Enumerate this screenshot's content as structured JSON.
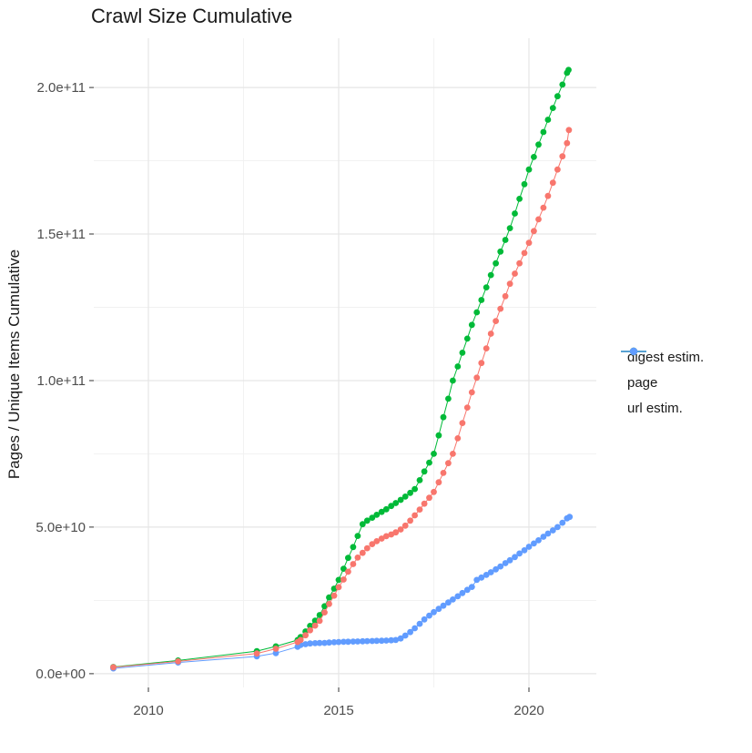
{
  "title": "Crawl Size Cumulative",
  "chart_data": {
    "type": "line",
    "title": "Crawl Size Cumulative",
    "xlabel": "",
    "ylabel": "Pages / Unique Items Cumulative",
    "value_unit": "1e9 (points stored as [year, billions])",
    "xlim": [
      2008.565,
      2021.77
    ],
    "ylim": [
      -4.7,
      216.8
    ],
    "grid": true,
    "legend_position": "right",
    "x_ticks": {
      "values": [
        2010,
        2015,
        2020
      ],
      "labels": [
        "2010",
        "2015",
        "2020"
      ],
      "minor": [
        2012.5,
        2017.5
      ]
    },
    "y_ticks": {
      "values": [
        0,
        50,
        100,
        150,
        200
      ],
      "labels": [
        "0.0e+00",
        "5.0e+10",
        "1.0e+11",
        "1.5e+11",
        "2.0e+11"
      ],
      "minor": [
        25,
        75,
        125,
        175
      ]
    },
    "series": [
      {
        "name": "digest estim.",
        "color": "#F8766D",
        "points": [
          [
            2009.08,
            2.2
          ],
          [
            2010.78,
            4.2
          ],
          [
            2012.85,
            6.9
          ],
          [
            2013.35,
            8.5
          ],
          [
            2013.92,
            10.8
          ],
          [
            2014.0,
            11.5
          ],
          [
            2014.13,
            13.1
          ],
          [
            2014.25,
            14.8
          ],
          [
            2014.38,
            16.4
          ],
          [
            2014.5,
            18
          ],
          [
            2014.63,
            20.9
          ],
          [
            2014.75,
            23.8
          ],
          [
            2014.88,
            26.6
          ],
          [
            2015.0,
            29.5
          ],
          [
            2015.13,
            32.1
          ],
          [
            2015.25,
            34.8
          ],
          [
            2015.38,
            37.4
          ],
          [
            2015.5,
            39.6
          ],
          [
            2015.63,
            41.2
          ],
          [
            2015.75,
            42.8
          ],
          [
            2015.88,
            44.2
          ],
          [
            2016.0,
            45.2
          ],
          [
            2016.13,
            46.1
          ],
          [
            2016.25,
            46.9
          ],
          [
            2016.38,
            47.5
          ],
          [
            2016.5,
            48.2
          ],
          [
            2016.63,
            49.2
          ],
          [
            2016.75,
            50.5
          ],
          [
            2016.88,
            52.2
          ],
          [
            2017.0,
            54
          ],
          [
            2017.13,
            56
          ],
          [
            2017.25,
            58
          ],
          [
            2017.38,
            60
          ],
          [
            2017.5,
            62
          ],
          [
            2017.63,
            65.3
          ],
          [
            2017.75,
            68.5
          ],
          [
            2017.88,
            71.8
          ],
          [
            2018.0,
            75
          ],
          [
            2018.13,
            80.3
          ],
          [
            2018.25,
            85.5
          ],
          [
            2018.38,
            90.8
          ],
          [
            2018.5,
            96
          ],
          [
            2018.63,
            101
          ],
          [
            2018.75,
            106
          ],
          [
            2018.88,
            111
          ],
          [
            2019.0,
            116
          ],
          [
            2019.13,
            120.3
          ],
          [
            2019.25,
            124.5
          ],
          [
            2019.38,
            128.8
          ],
          [
            2019.5,
            133
          ],
          [
            2019.63,
            136.5
          ],
          [
            2019.75,
            140
          ],
          [
            2019.88,
            143.5
          ],
          [
            2020.0,
            147
          ],
          [
            2020.13,
            151
          ],
          [
            2020.25,
            155
          ],
          [
            2020.38,
            159
          ],
          [
            2020.5,
            163
          ],
          [
            2020.63,
            167.5
          ],
          [
            2020.75,
            172
          ],
          [
            2020.88,
            176.5
          ],
          [
            2021.0,
            181
          ],
          [
            2021.05,
            185.5
          ]
        ]
      },
      {
        "name": "page",
        "color": "#00BA38",
        "points": [
          [
            2009.08,
            2.3
          ],
          [
            2010.78,
            4.5
          ],
          [
            2012.85,
            7.7
          ],
          [
            2013.35,
            9.3
          ],
          [
            2013.92,
            11.5
          ],
          [
            2014.0,
            12.5
          ],
          [
            2014.13,
            14.4
          ],
          [
            2014.25,
            16.3
          ],
          [
            2014.38,
            18.1
          ],
          [
            2014.5,
            20
          ],
          [
            2014.63,
            23
          ],
          [
            2014.75,
            26
          ],
          [
            2014.88,
            29
          ],
          [
            2015.0,
            32
          ],
          [
            2015.13,
            35.8
          ],
          [
            2015.25,
            39.5
          ],
          [
            2015.38,
            43.2
          ],
          [
            2015.5,
            47
          ],
          [
            2015.63,
            51
          ],
          [
            2015.75,
            52.2
          ],
          [
            2015.88,
            53.2
          ],
          [
            2016.0,
            54.2
          ],
          [
            2016.13,
            55.2
          ],
          [
            2016.25,
            56.1
          ],
          [
            2016.38,
            57.2
          ],
          [
            2016.5,
            58.2
          ],
          [
            2016.63,
            59.3
          ],
          [
            2016.75,
            60.4
          ],
          [
            2016.88,
            61.7
          ],
          [
            2017.0,
            63
          ],
          [
            2017.13,
            66
          ],
          [
            2017.25,
            69
          ],
          [
            2017.38,
            72
          ],
          [
            2017.5,
            75
          ],
          [
            2017.63,
            81.3
          ],
          [
            2017.75,
            87.5
          ],
          [
            2017.88,
            93.8
          ],
          [
            2018.0,
            100
          ],
          [
            2018.13,
            104.8
          ],
          [
            2018.25,
            109.5
          ],
          [
            2018.38,
            114.3
          ],
          [
            2018.5,
            119
          ],
          [
            2018.63,
            123.3
          ],
          [
            2018.75,
            127.5
          ],
          [
            2018.88,
            131.8
          ],
          [
            2019.0,
            136
          ],
          [
            2019.13,
            140
          ],
          [
            2019.25,
            144
          ],
          [
            2019.38,
            148
          ],
          [
            2019.5,
            152
          ],
          [
            2019.63,
            157
          ],
          [
            2019.75,
            162
          ],
          [
            2019.88,
            167
          ],
          [
            2020.0,
            172
          ],
          [
            2020.13,
            176.3
          ],
          [
            2020.25,
            180.5
          ],
          [
            2020.38,
            184.8
          ],
          [
            2020.5,
            189
          ],
          [
            2020.63,
            193
          ],
          [
            2020.75,
            197
          ],
          [
            2020.88,
            201
          ],
          [
            2021.0,
            205
          ],
          [
            2021.04,
            206
          ]
        ]
      },
      {
        "name": "url estim.",
        "color": "#619CFF",
        "points": [
          [
            2009.08,
            1.8
          ],
          [
            2010.78,
            3.8
          ],
          [
            2012.85,
            5.9
          ],
          [
            2013.35,
            7.0
          ],
          [
            2013.92,
            9.2
          ],
          [
            2014.0,
            9.8
          ],
          [
            2014.13,
            10.05
          ],
          [
            2014.25,
            10.3
          ],
          [
            2014.38,
            10.4
          ],
          [
            2014.5,
            10.45
          ],
          [
            2014.63,
            10.5
          ],
          [
            2014.75,
            10.6
          ],
          [
            2014.88,
            10.7
          ],
          [
            2015.0,
            10.8
          ],
          [
            2015.13,
            10.85
          ],
          [
            2015.25,
            10.9
          ],
          [
            2015.38,
            10.95
          ],
          [
            2015.5,
            11.0
          ],
          [
            2015.63,
            11.05
          ],
          [
            2015.75,
            11.1
          ],
          [
            2015.88,
            11.15
          ],
          [
            2016.0,
            11.2
          ],
          [
            2016.13,
            11.25
          ],
          [
            2016.25,
            11.3
          ],
          [
            2016.38,
            11.4
          ],
          [
            2016.5,
            11.5
          ],
          [
            2016.63,
            12.0
          ],
          [
            2016.75,
            13.0
          ],
          [
            2016.88,
            14.2
          ],
          [
            2017.0,
            15.5
          ],
          [
            2017.13,
            17.0
          ],
          [
            2017.25,
            18.5
          ],
          [
            2017.38,
            19.8
          ],
          [
            2017.5,
            21.0
          ],
          [
            2017.63,
            22.1
          ],
          [
            2017.75,
            23.2
          ],
          [
            2017.88,
            24.3
          ],
          [
            2018.0,
            25.3
          ],
          [
            2018.13,
            26.4
          ],
          [
            2018.25,
            27.5
          ],
          [
            2018.38,
            28.6
          ],
          [
            2018.5,
            29.6
          ],
          [
            2018.63,
            32.0
          ],
          [
            2018.75,
            32.8
          ],
          [
            2018.88,
            33.7
          ],
          [
            2019.0,
            34.6
          ],
          [
            2019.13,
            35.6
          ],
          [
            2019.25,
            36.6
          ],
          [
            2019.38,
            37.7
          ],
          [
            2019.5,
            38.7
          ],
          [
            2019.63,
            39.8
          ],
          [
            2019.75,
            41.0
          ],
          [
            2019.88,
            42.1
          ],
          [
            2020.0,
            43.3
          ],
          [
            2020.13,
            44.4
          ],
          [
            2020.25,
            45.5
          ],
          [
            2020.38,
            46.7
          ],
          [
            2020.5,
            47.8
          ],
          [
            2020.63,
            48.9
          ],
          [
            2020.75,
            50.0
          ],
          [
            2020.88,
            51.5
          ],
          [
            2021.0,
            53.0
          ],
          [
            2021.07,
            53.5
          ]
        ]
      }
    ]
  }
}
